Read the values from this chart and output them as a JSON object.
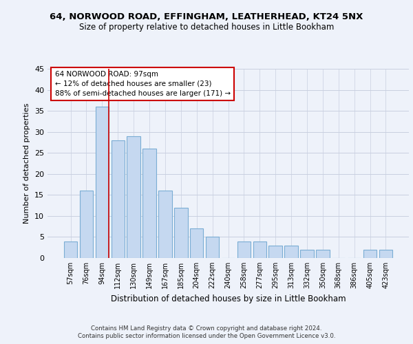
{
  "title1": "64, NORWOOD ROAD, EFFINGHAM, LEATHERHEAD, KT24 5NX",
  "title2": "Size of property relative to detached houses in Little Bookham",
  "xlabel": "Distribution of detached houses by size in Little Bookham",
  "ylabel": "Number of detached properties",
  "categories": [
    "57sqm",
    "76sqm",
    "94sqm",
    "112sqm",
    "130sqm",
    "149sqm",
    "167sqm",
    "185sqm",
    "204sqm",
    "222sqm",
    "240sqm",
    "258sqm",
    "277sqm",
    "295sqm",
    "313sqm",
    "332sqm",
    "350sqm",
    "368sqm",
    "386sqm",
    "405sqm",
    "423sqm"
  ],
  "values": [
    4,
    16,
    36,
    28,
    29,
    26,
    16,
    12,
    7,
    5,
    0,
    4,
    4,
    3,
    3,
    2,
    2,
    0,
    0,
    2,
    2
  ],
  "bar_color": "#c5d8f0",
  "bar_edge_color": "#7aadd4",
  "marker_index": 2,
  "marker_line_color": "#cc0000",
  "annotation_line1": "64 NORWOOD ROAD: 97sqm",
  "annotation_line2": "← 12% of detached houses are smaller (23)",
  "annotation_line3": "88% of semi-detached houses are larger (171) →",
  "annotation_box_color": "#ffffff",
  "annotation_box_edge_color": "#cc0000",
  "ylim": [
    0,
    45
  ],
  "yticks": [
    0,
    5,
    10,
    15,
    20,
    25,
    30,
    35,
    40,
    45
  ],
  "bg_color": "#eef2fa",
  "grid_color": "#c8cfe0",
  "footer1": "Contains HM Land Registry data © Crown copyright and database right 2024.",
  "footer2": "Contains public sector information licensed under the Open Government Licence v3.0."
}
